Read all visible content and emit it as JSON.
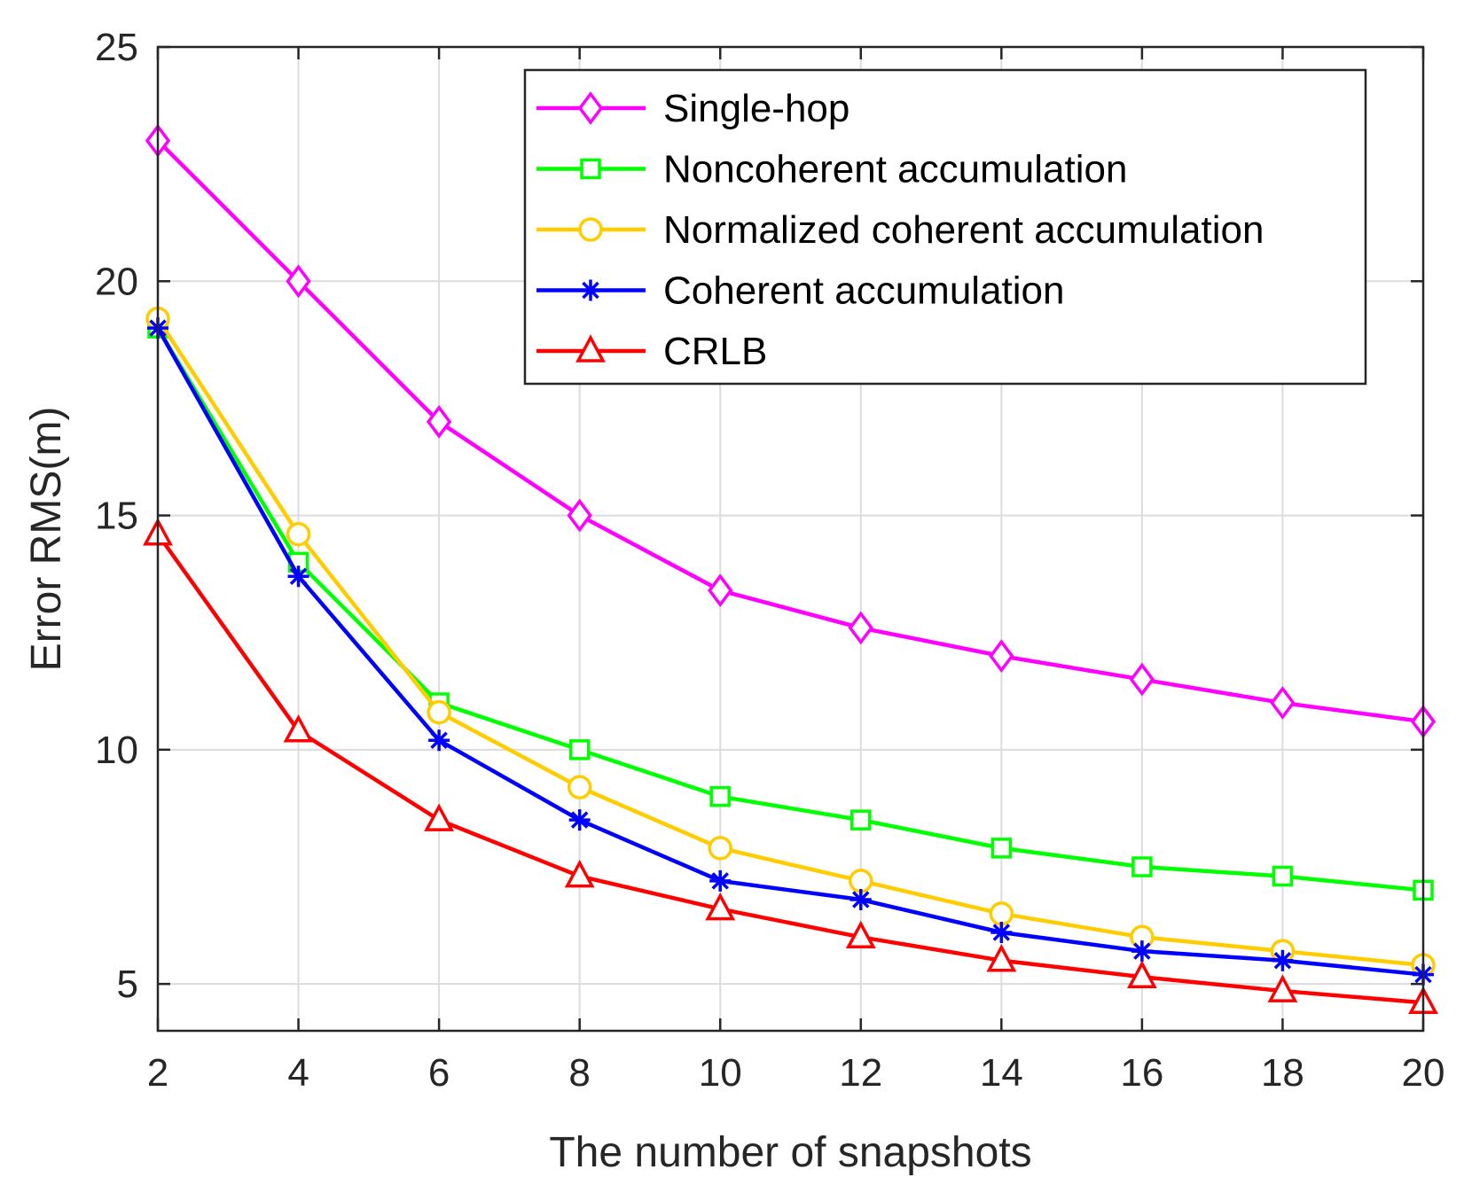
{
  "chart_data": {
    "type": "line",
    "xlabel": "The number of snapshots",
    "ylabel": "Error RMS(m)",
    "x": [
      2,
      4,
      6,
      8,
      10,
      12,
      14,
      16,
      18,
      20
    ],
    "xlim": [
      2,
      20
    ],
    "ylim": [
      4,
      25
    ],
    "xticks": [
      "2",
      "4",
      "6",
      "8",
      "10",
      "12",
      "14",
      "16",
      "18",
      "20"
    ],
    "yticks": [
      "5",
      "10",
      "15",
      "20",
      "25"
    ],
    "grid": true,
    "legend_position": "top-right",
    "series": [
      {
        "name": "Single-hop",
        "color": "#ff00ff",
        "marker": "diamond",
        "values": [
          23.0,
          20.0,
          17.0,
          15.0,
          13.4,
          12.6,
          12.0,
          11.5,
          11.0,
          10.6
        ]
      },
      {
        "name": "Noncoherent accumulation",
        "color": "#00ff00",
        "marker": "square",
        "values": [
          19.0,
          14.0,
          11.0,
          10.0,
          9.0,
          8.5,
          7.9,
          7.5,
          7.3,
          7.0
        ]
      },
      {
        "name": "Normalized coherent accumulation",
        "color": "#ffcc00",
        "marker": "circle",
        "values": [
          19.2,
          14.6,
          10.8,
          9.2,
          7.9,
          7.2,
          6.5,
          6.0,
          5.7,
          5.4
        ]
      },
      {
        "name": "Coherent accumulation",
        "color": "#0000ff",
        "marker": "asterisk",
        "values": [
          19.0,
          13.7,
          10.2,
          8.5,
          7.2,
          6.8,
          6.1,
          5.7,
          5.5,
          5.2
        ]
      },
      {
        "name": "CRLB",
        "color": "#ff0000",
        "marker": "triangle",
        "values": [
          14.6,
          10.4,
          8.5,
          7.3,
          6.6,
          6.0,
          5.5,
          5.15,
          4.85,
          4.6
        ]
      }
    ]
  }
}
